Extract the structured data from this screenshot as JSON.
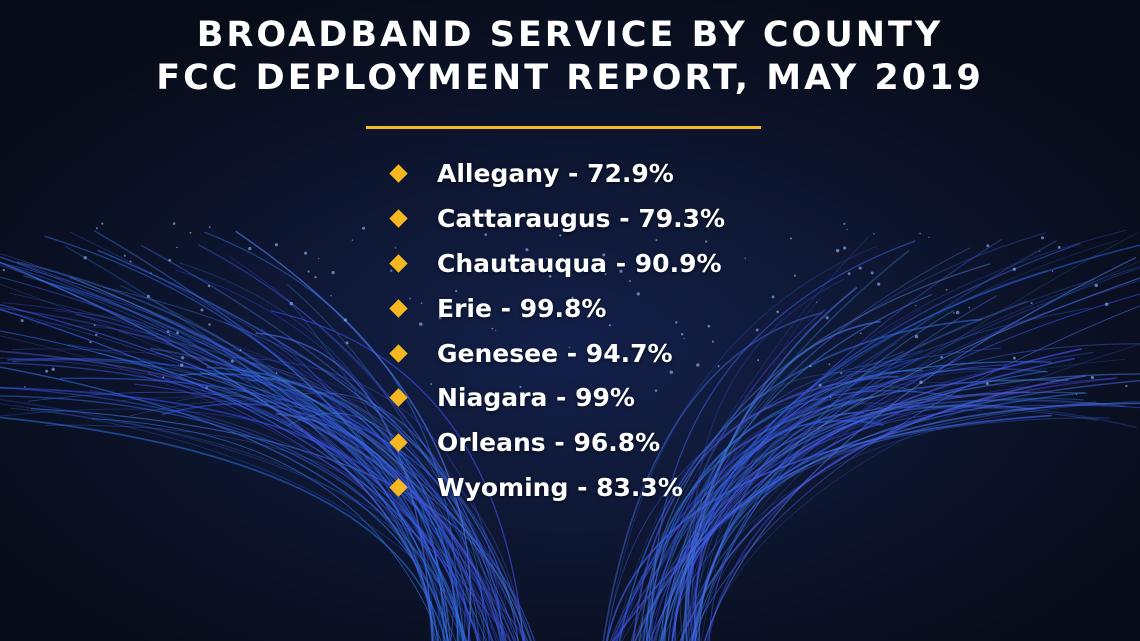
{
  "header": {
    "title_line1": "BROADBAND SERVICE BY COUNTY",
    "title_line2": "FCC DEPLOYMENT REPORT, MAY 2019"
  },
  "items": [
    "Allegany - 72.9%",
    "Cattaraugus - 79.3%",
    "Chautauqua - 90.9%",
    "Erie - 99.8%",
    "Genesee - 94.7%",
    "Niagara - 99%",
    "Orleans - 96.8%",
    "Wyoming - 83.3%"
  ]
}
